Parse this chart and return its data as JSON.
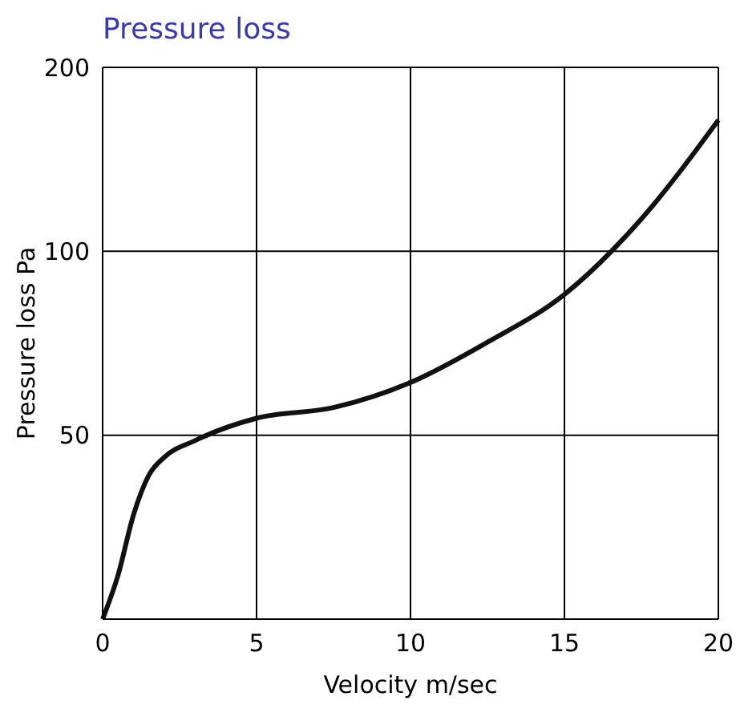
{
  "chart_data": {
    "type": "line",
    "title": "Pressure loss",
    "xlabel": "Velocity m/sec",
    "ylabel": "Pressure loss Pa",
    "log": "y",
    "x": [
      0,
      0.5,
      1,
      1.5,
      2,
      3,
      5,
      7.5,
      10,
      12.5,
      15,
      17.5,
      20
    ],
    "series": [
      {
        "color": "#111111",
        "values": [
          25,
          29.5,
          37,
          43,
          46,
          49,
          53.3,
          55.5,
          61,
          71,
          85,
          113,
          164
        ]
      }
    ],
    "xlim": [
      0,
      20
    ],
    "xticks": [
      0,
      5,
      10,
      15,
      20
    ],
    "ylim": [
      25,
      200
    ],
    "yticks": [
      {
        "value": 25,
        "label": null
      },
      50,
      100,
      200
    ],
    "grid": true,
    "legend": false,
    "marker": "none",
    "line_style": "solid"
  }
}
